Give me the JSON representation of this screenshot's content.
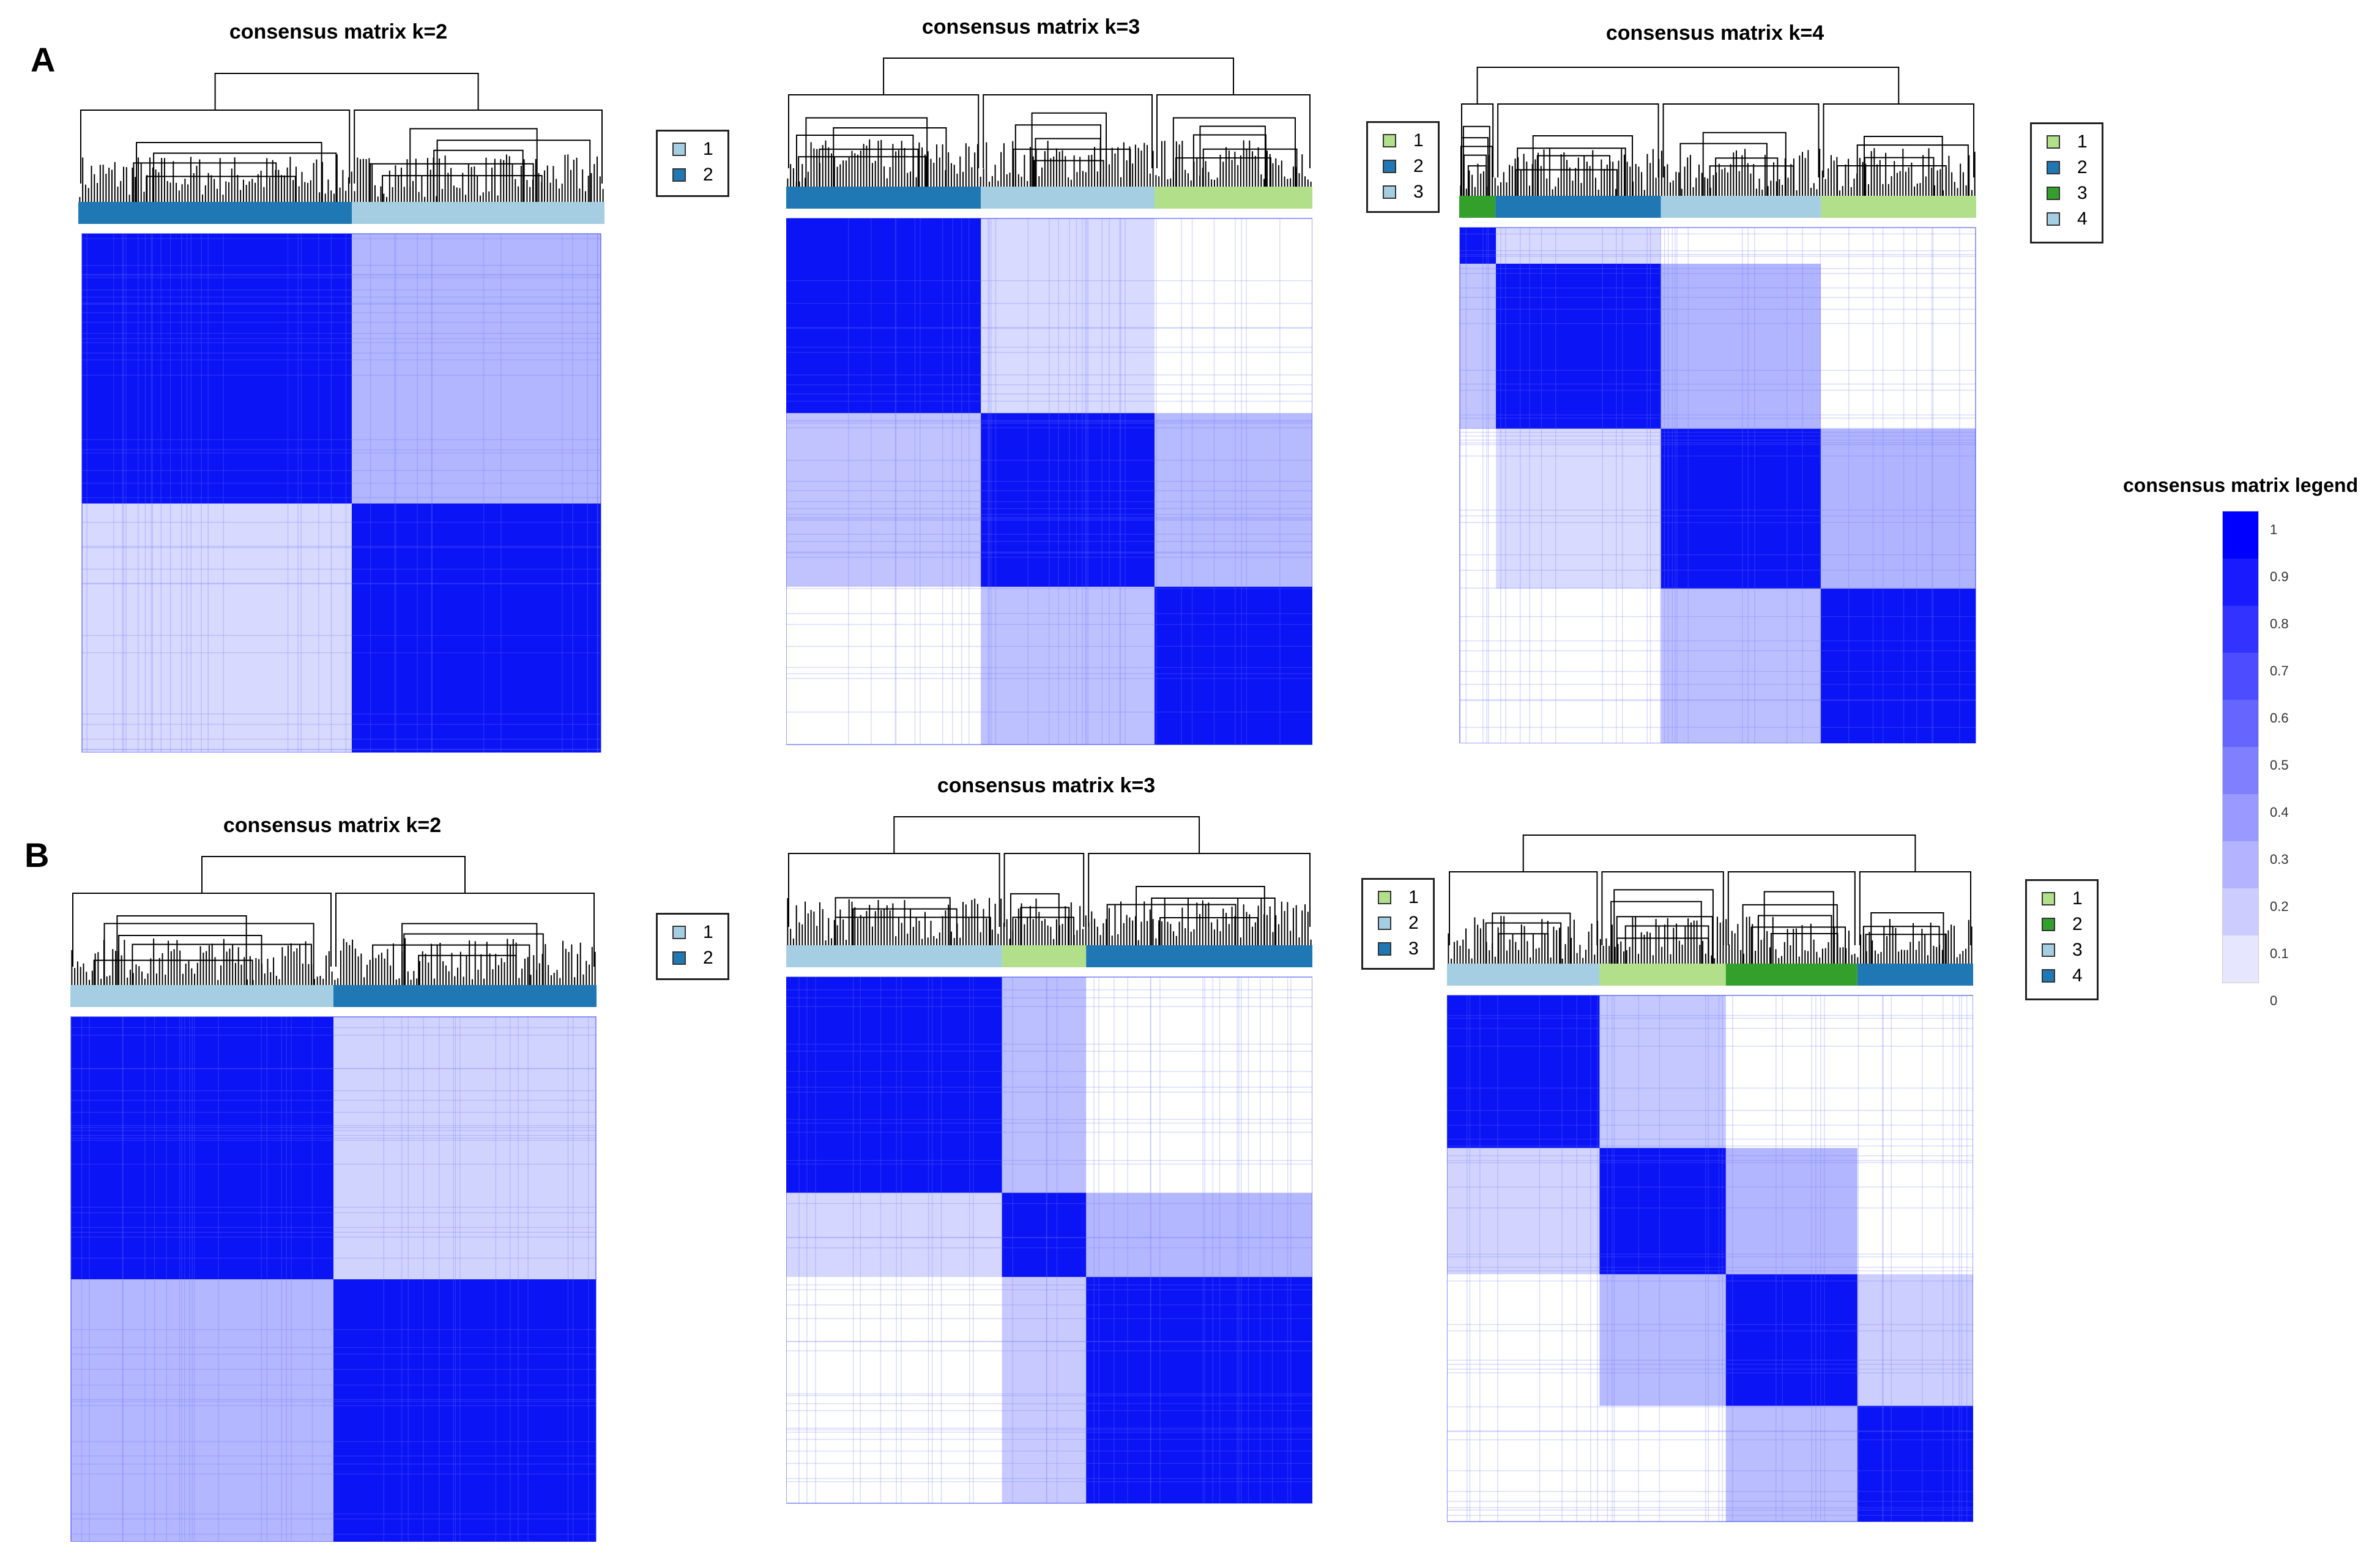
{
  "figure": {
    "panel_labels": [
      "A",
      "B"
    ]
  },
  "chart_data": [
    {
      "type": "heatmap",
      "panel": "A",
      "title": "consensus matrix k=2",
      "k": 2,
      "legend": [
        {
          "label": "1",
          "color": "#a6cee3"
        },
        {
          "label": "2",
          "color": "#1f78b4"
        }
      ],
      "cluster_order": [
        "2",
        "1"
      ],
      "cluster_fractions": [
        0.52,
        0.48
      ]
    },
    {
      "type": "heatmap",
      "panel": "A",
      "title": "consensus matrix k=3",
      "k": 3,
      "legend": [
        {
          "label": "1",
          "color": "#b2df8a"
        },
        {
          "label": "2",
          "color": "#1f78b4"
        },
        {
          "label": "3",
          "color": "#a6cee3"
        }
      ],
      "cluster_order": [
        "2",
        "3",
        "1"
      ],
      "cluster_fractions": [
        0.37,
        0.33,
        0.3
      ]
    },
    {
      "type": "heatmap",
      "panel": "A",
      "title": "consensus matrix k=4",
      "k": 4,
      "legend": [
        {
          "label": "1",
          "color": "#b2df8a"
        },
        {
          "label": "2",
          "color": "#1f78b4"
        },
        {
          "label": "3",
          "color": "#33a02c"
        },
        {
          "label": "4",
          "color": "#a6cee3"
        }
      ],
      "cluster_order": [
        "3",
        "2",
        "4",
        "1"
      ],
      "cluster_fractions": [
        0.07,
        0.32,
        0.31,
        0.3
      ]
    },
    {
      "type": "heatmap",
      "panel": "B",
      "title": "consensus matrix k=2",
      "k": 2,
      "legend": [
        {
          "label": "1",
          "color": "#a6cee3"
        },
        {
          "label": "2",
          "color": "#1f78b4"
        }
      ],
      "cluster_order": [
        "1",
        "2"
      ],
      "cluster_fractions": [
        0.5,
        0.5
      ]
    },
    {
      "type": "heatmap",
      "panel": "B",
      "title": "consensus matrix k=3",
      "k": 3,
      "legend": [
        {
          "label": "1",
          "color": "#b2df8a"
        },
        {
          "label": "2",
          "color": "#a6cee3"
        },
        {
          "label": "3",
          "color": "#1f78b4"
        }
      ],
      "cluster_order": [
        "2",
        "1",
        "3"
      ],
      "cluster_fractions": [
        0.41,
        0.16,
        0.43
      ]
    },
    {
      "type": "heatmap",
      "panel": "B",
      "title": "",
      "k": 4,
      "legend": [
        {
          "label": "1",
          "color": "#b2df8a"
        },
        {
          "label": "2",
          "color": "#33a02c"
        },
        {
          "label": "3",
          "color": "#a6cee3"
        },
        {
          "label": "4",
          "color": "#1f78b4"
        }
      ],
      "cluster_order": [
        "3",
        "1",
        "2",
        "4"
      ],
      "cluster_fractions": [
        0.29,
        0.24,
        0.25,
        0.22
      ]
    },
    {
      "type": "colorbar",
      "title": "consensus matrix legend",
      "ticks": [
        "1",
        "0.9",
        "0.8",
        "0.7",
        "0.6",
        "0.5",
        "0.4",
        "0.3",
        "0.2",
        "0.1",
        "0"
      ],
      "range": [
        0,
        1
      ],
      "colors": [
        "#0000ff",
        "#1a1aff",
        "#3333ff",
        "#4d4dff",
        "#6666ff",
        "#8080ff",
        "#9999ff",
        "#b3b3ff",
        "#ccccff",
        "#e6e6ff"
      ]
    }
  ]
}
